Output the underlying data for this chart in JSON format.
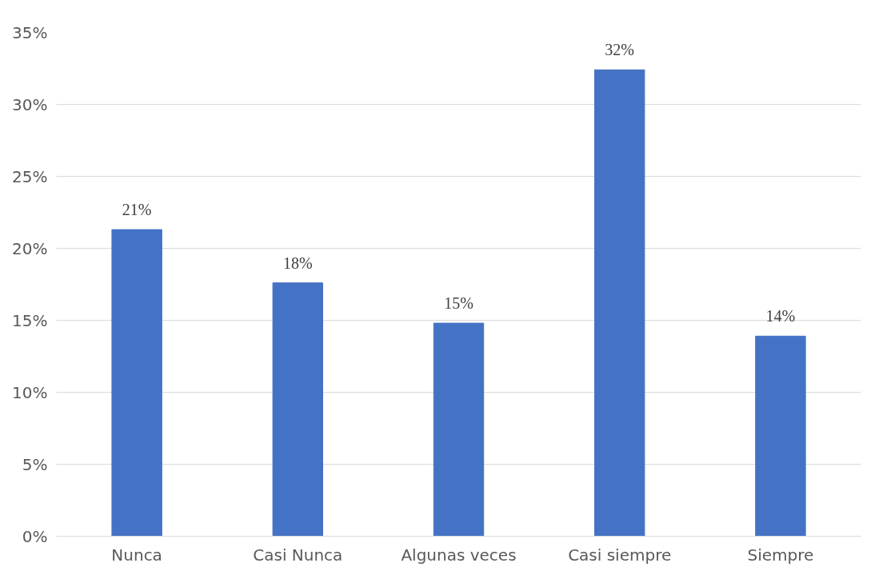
{
  "chart_data": {
    "type": "bar",
    "categories": [
      "Nunca",
      "Casi Nunca",
      "Algunas veces",
      "Casi siempre",
      "Siempre"
    ],
    "values": [
      21.3,
      17.6,
      14.8,
      32.4,
      13.9
    ],
    "value_labels": [
      "21%",
      "18%",
      "15%",
      "32%",
      "14%"
    ],
    "color": "#4472c4",
    "ylim": [
      0,
      35
    ],
    "yticks": [
      {
        "value": 0,
        "label": "0%"
      },
      {
        "value": 5,
        "label": "5%"
      },
      {
        "value": 10,
        "label": "10%"
      },
      {
        "value": 15,
        "label": "15%"
      },
      {
        "value": 20,
        "label": "20%"
      },
      {
        "value": 25,
        "label": "25%"
      },
      {
        "value": 30,
        "label": "30%"
      },
      {
        "value": 35,
        "label": "35%"
      }
    ],
    "grid": "y"
  }
}
